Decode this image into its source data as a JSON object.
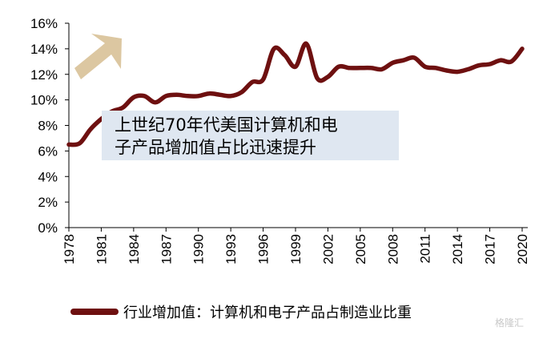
{
  "chart_data": {
    "type": "line",
    "title": "",
    "xlabel": "",
    "ylabel": "",
    "ylim": [
      0,
      16
    ],
    "xlim": [
      1978,
      2020
    ],
    "y_ticks": [
      "0%",
      "2%",
      "4%",
      "6%",
      "8%",
      "10%",
      "12%",
      "14%",
      "16%"
    ],
    "x_ticks": [
      "1978",
      "1981",
      "1984",
      "1987",
      "1990",
      "1993",
      "1996",
      "1999",
      "2002",
      "2005",
      "2008",
      "2011",
      "2014",
      "2017",
      "2020"
    ],
    "legend": "bottom",
    "grid": false,
    "color": "#6e1010",
    "series": [
      {
        "name": "行业增加值：计算机和电子产品占制造业比重",
        "x": [
          1978,
          1979,
          1980,
          1981,
          1982,
          1983,
          1984,
          1985,
          1986,
          1987,
          1988,
          1989,
          1990,
          1991,
          1992,
          1993,
          1994,
          1995,
          1996,
          1997,
          1998,
          1999,
          2000,
          2001,
          2002,
          2003,
          2004,
          2005,
          2006,
          2007,
          2008,
          2009,
          2010,
          2011,
          2012,
          2013,
          2014,
          2015,
          2016,
          2017,
          2018,
          2019,
          2020
        ],
        "values": [
          6.5,
          6.6,
          7.7,
          8.5,
          9.1,
          9.4,
          10.2,
          10.3,
          9.8,
          10.3,
          10.4,
          10.3,
          10.3,
          10.5,
          10.4,
          10.3,
          10.6,
          11.4,
          11.6,
          14.0,
          13.5,
          12.6,
          14.4,
          11.7,
          11.8,
          12.6,
          12.5,
          12.5,
          12.5,
          12.4,
          12.9,
          13.1,
          13.3,
          12.6,
          12.5,
          12.3,
          12.2,
          12.4,
          12.7,
          12.8,
          13.1,
          13.0,
          14.0
        ]
      }
    ],
    "annotation": {
      "lines": [
        "上世纪70年代美国计算机和电",
        "子产品增加值占比迅速提升"
      ],
      "arrow_color": "#dcc7a1"
    }
  },
  "watermark": "格隆汇"
}
